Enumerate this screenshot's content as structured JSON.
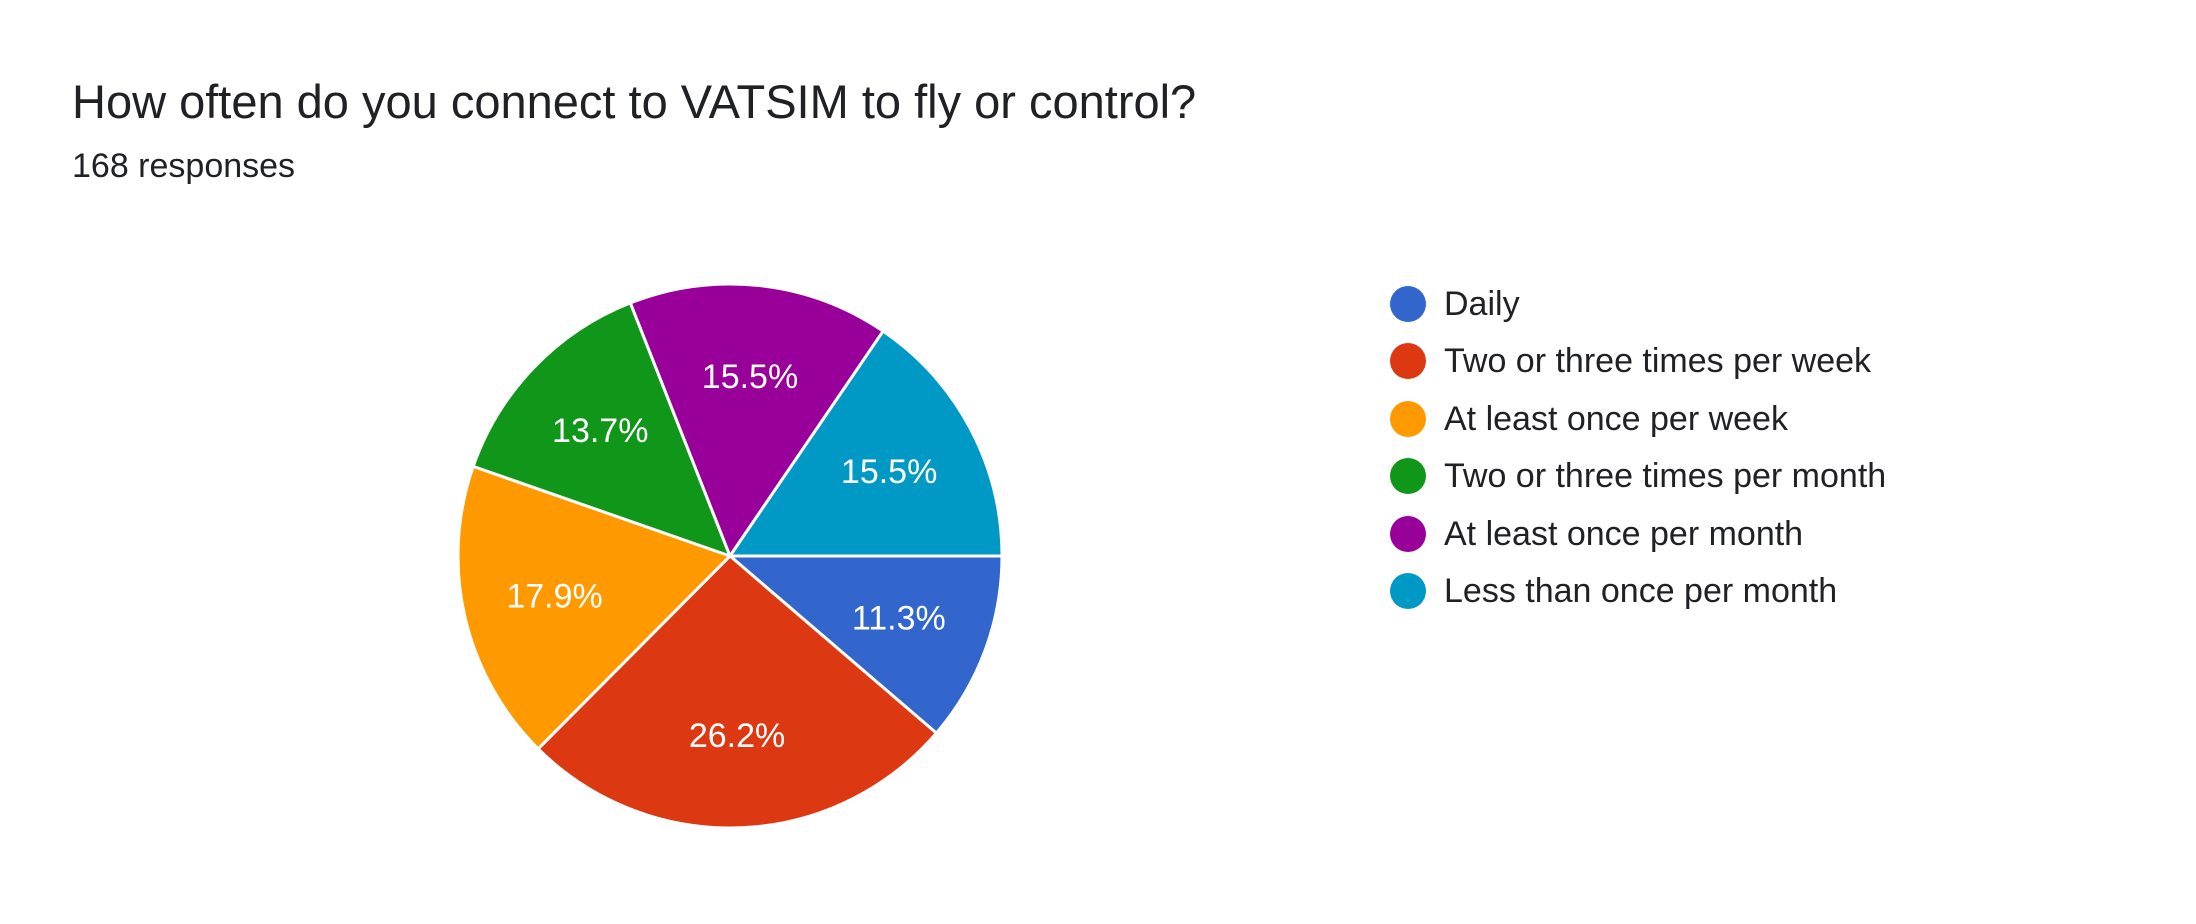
{
  "header": {
    "title": "How often do you connect to VATSIM to fly or control?",
    "subtitle": "168 responses"
  },
  "chart_data": {
    "type": "pie",
    "title": "How often do you connect to VATSIM to fly or control?",
    "subtitle": "168 responses",
    "legend_position": "right",
    "slices": [
      {
        "label": "Daily",
        "value": 11.3,
        "display": "11.3%",
        "color": "#3366cc"
      },
      {
        "label": "Two or three times per week",
        "value": 26.2,
        "display": "26.2%",
        "color": "#dc3912"
      },
      {
        "label": "At least once per week",
        "value": 17.9,
        "display": "17.9%",
        "color": "#ff9900"
      },
      {
        "label": "Two or three times per month",
        "value": 13.7,
        "display": "13.7%",
        "color": "#109618"
      },
      {
        "label": "At least once per month",
        "value": 15.5,
        "display": "15.5%",
        "color": "#990099"
      },
      {
        "label": "Less than once per month",
        "value": 15.5,
        "display": "15.5%",
        "color": "#0099c6"
      }
    ]
  },
  "legend": {
    "items": [
      {
        "label": "Daily",
        "color": "#3366cc"
      },
      {
        "label": "Two or three times per week",
        "color": "#dc3912"
      },
      {
        "label": "At least once per week",
        "color": "#ff9900"
      },
      {
        "label": "Two or three times per month",
        "color": "#109618"
      },
      {
        "label": "At least once per month",
        "color": "#990099"
      },
      {
        "label": "Less than once per month",
        "color": "#0099c6"
      }
    ]
  }
}
